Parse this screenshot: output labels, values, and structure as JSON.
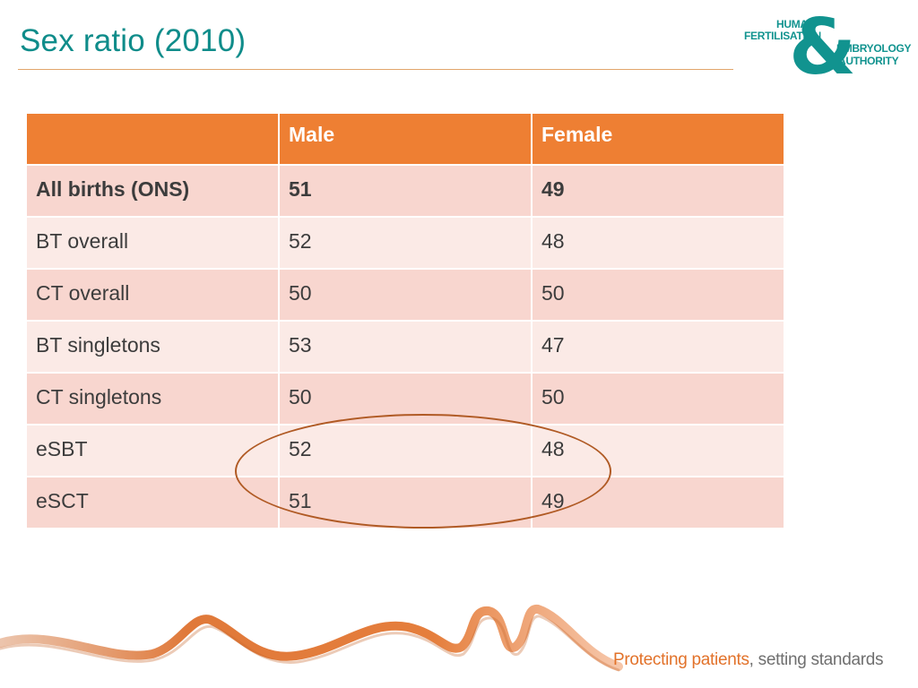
{
  "slide": {
    "title": "Sex ratio (2010)"
  },
  "logo": {
    "line1": "HUMAN",
    "line2": "FERTILISATION",
    "ampersand": "&",
    "line3": "EMBRYOLOGY",
    "line4": "AUTHORITY",
    "color": "#11938f"
  },
  "table": {
    "headers": [
      "",
      "Male",
      "Female"
    ],
    "rows": [
      {
        "label": "All births (ONS)",
        "male": "51",
        "female": "49"
      },
      {
        "label": "BT overall",
        "male": "52",
        "female": "48"
      },
      {
        "label": "CT overall",
        "male": "50",
        "female": "50"
      },
      {
        "label": "BT singletons",
        "male": "53",
        "female": "47"
      },
      {
        "label": "CT singletons",
        "male": "50",
        "female": "50"
      },
      {
        "label": "eSBT",
        "male": "52",
        "female": "48"
      },
      {
        "label": "eSCT",
        "male": "51",
        "female": "49"
      }
    ],
    "header_color": "#ee7f33",
    "row_color_a": "#f8d6cf",
    "row_color_b": "#fbeae6"
  },
  "footer": {
    "tagline_highlight": "Protecting patients",
    "tagline_rest": ", setting standards"
  },
  "colors": {
    "title": "#0f8c8a",
    "accent": "#ee7f33",
    "circle": "#b05a24"
  }
}
